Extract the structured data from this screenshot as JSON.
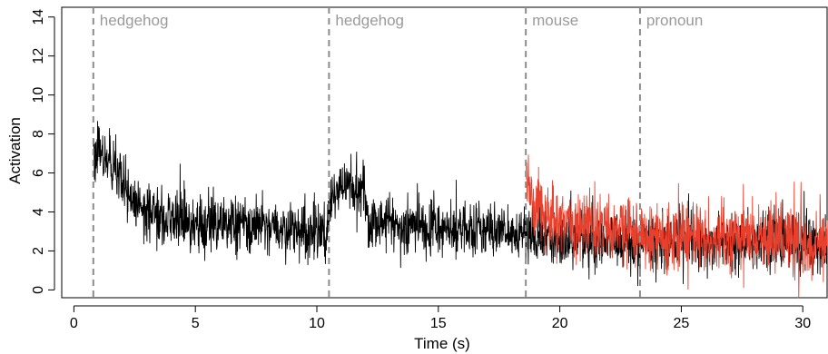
{
  "chart_data": {
    "type": "line",
    "xlabel": "Time (s)",
    "ylabel": "Activation",
    "xlim": [
      -0.5,
      31
    ],
    "ylim": [
      -0.4,
      14.5
    ],
    "xticks": [
      0,
      5,
      10,
      15,
      20,
      25,
      30
    ],
    "yticks": [
      0,
      2,
      4,
      6,
      8,
      10,
      12,
      14
    ],
    "grid": false,
    "events": [
      {
        "time": 0.8,
        "label": "hedgehog"
      },
      {
        "time": 10.5,
        "label": "hedgehog"
      },
      {
        "time": 18.6,
        "label": "mouse"
      },
      {
        "time": 23.3,
        "label": "pronoun"
      }
    ],
    "series": [
      {
        "color": "#000000",
        "x_range": [
          0.8,
          31
        ],
        "noise_sd": 0.7,
        "mean_profile": [
          [
            0.8,
            7.2
          ],
          [
            1.2,
            6.8
          ],
          [
            1.7,
            6.0
          ],
          [
            2.2,
            4.8
          ],
          [
            3.0,
            3.9
          ],
          [
            5.0,
            3.4
          ],
          [
            8.0,
            3.2
          ],
          [
            10.4,
            3.0
          ],
          [
            10.6,
            5.0
          ],
          [
            11.2,
            5.4
          ],
          [
            11.9,
            5.0
          ],
          [
            12.1,
            3.5
          ],
          [
            14.0,
            3.3
          ],
          [
            18.5,
            3.0
          ],
          [
            19.0,
            2.7
          ],
          [
            22.0,
            2.5
          ],
          [
            31.0,
            2.4
          ]
        ]
      },
      {
        "color": "#e8402c",
        "x_range": [
          18.6,
          31
        ],
        "noise_sd": 0.85,
        "mean_profile": [
          [
            18.6,
            5.8
          ],
          [
            19.0,
            4.3
          ],
          [
            20.0,
            3.6
          ],
          [
            23.0,
            2.9
          ],
          [
            31.0,
            2.4
          ]
        ]
      }
    ]
  }
}
